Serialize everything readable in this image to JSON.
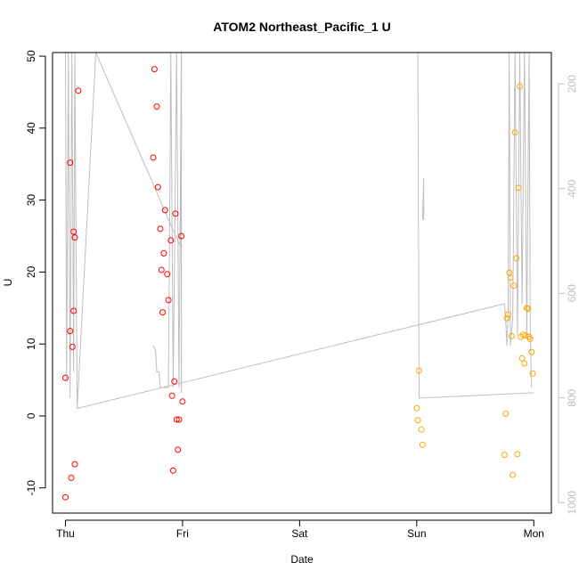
{
  "chart_data": {
    "type": "scatter",
    "title": "ATOM2 Northeast_Pacific_1 U",
    "xlabel": "Date",
    "ylabel": "U",
    "x_unit": "days",
    "x_range": [
      -0.11,
      4.15
    ],
    "ylim": [
      -13.5,
      50.5
    ],
    "y2lim": [
      1020,
      140
    ],
    "y2_reversed": true,
    "x_ticks": [
      {
        "value": 0,
        "label": "Thu"
      },
      {
        "value": 1,
        "label": "Fri"
      },
      {
        "value": 2,
        "label": "Sat"
      },
      {
        "value": 3,
        "label": "Sun"
      },
      {
        "value": 4,
        "label": "Mon"
      }
    ],
    "y_ticks": [
      -10,
      0,
      10,
      20,
      30,
      40,
      50
    ],
    "y2_ticks": [
      200,
      400,
      600,
      800,
      1000
    ],
    "series": [
      {
        "color": "#ff0000",
        "marker": "open-circle",
        "points": [
          [
            0.0,
            5.3
          ],
          [
            0.0,
            -11.3
          ],
          [
            0.04,
            35.2
          ],
          [
            0.04,
            11.8
          ],
          [
            0.05,
            -8.6
          ],
          [
            0.06,
            9.6
          ],
          [
            0.07,
            25.6
          ],
          [
            0.07,
            14.6
          ],
          [
            0.08,
            24.8
          ],
          [
            0.08,
            -6.7
          ],
          [
            0.11,
            45.2
          ],
          [
            0.75,
            35.9
          ],
          [
            0.76,
            48.2
          ],
          [
            0.78,
            43.0
          ],
          [
            0.79,
            31.8
          ],
          [
            0.81,
            26.0
          ],
          [
            0.82,
            20.3
          ],
          [
            0.83,
            14.4
          ],
          [
            0.84,
            22.6
          ],
          [
            0.85,
            28.6
          ],
          [
            0.87,
            19.7
          ],
          [
            0.88,
            16.1
          ],
          [
            0.9,
            24.4
          ],
          [
            0.91,
            2.8
          ],
          [
            0.92,
            -7.6
          ],
          [
            0.93,
            4.8
          ],
          [
            0.94,
            28.1
          ],
          [
            0.95,
            -0.5
          ],
          [
            0.96,
            -4.7
          ],
          [
            0.97,
            -0.5
          ],
          [
            0.99,
            25.0
          ],
          [
            1.0,
            2.0
          ]
        ]
      },
      {
        "color": "#ffa500",
        "marker": "open-circle",
        "points": [
          [
            3.0,
            1.1
          ],
          [
            3.01,
            -0.6
          ],
          [
            3.02,
            6.3
          ],
          [
            3.04,
            -1.9
          ],
          [
            3.05,
            -4.0
          ],
          [
            3.75,
            -5.4
          ],
          [
            3.76,
            0.3
          ],
          [
            3.77,
            13.6
          ],
          [
            3.78,
            14.1
          ],
          [
            3.79,
            19.9
          ],
          [
            3.8,
            19.2
          ],
          [
            3.81,
            11.1
          ],
          [
            3.82,
            -8.2
          ],
          [
            3.83,
            18.1
          ],
          [
            3.84,
            39.4
          ],
          [
            3.85,
            21.9
          ],
          [
            3.86,
            -5.3
          ],
          [
            3.87,
            31.7
          ],
          [
            3.88,
            45.8
          ],
          [
            3.89,
            11.0
          ],
          [
            3.9,
            8.0
          ],
          [
            3.91,
            11.3
          ],
          [
            3.92,
            7.3
          ],
          [
            3.93,
            11.2
          ],
          [
            3.94,
            15.0
          ],
          [
            3.95,
            14.9
          ],
          [
            3.96,
            11.0
          ],
          [
            3.97,
            10.7
          ],
          [
            3.98,
            8.9
          ],
          [
            3.99,
            5.9
          ]
        ]
      }
    ],
    "depth_line": {
      "color": "#bebebe",
      "axis": "right",
      "points": [
        [
          0.0,
          140
        ],
        [
          0.01,
          770
        ],
        [
          0.025,
          140
        ],
        [
          0.04,
          800
        ],
        [
          0.055,
          140
        ],
        [
          0.07,
          750
        ],
        [
          0.08,
          140
        ],
        [
          0.1,
          820
        ],
        [
          0.26,
          140
        ],
        [
          0.98,
          510
        ],
        [
          0.99,
          140
        ],
        [
          0.99,
          790
        ]
      ],
      "segments": [
        [
          [
            0.75,
            700
          ],
          [
            0.77,
            710
          ],
          [
            0.78,
            750
          ],
          [
            0.8,
            750
          ],
          [
            0.81,
            780
          ],
          [
            0.88,
            780
          ],
          [
            0.9,
            140
          ],
          [
            0.92,
            780
          ],
          [
            0.95,
            140
          ],
          [
            0.97,
            780
          ],
          [
            0.99,
            140
          ],
          [
            0.99,
            780
          ]
        ],
        [
          [
            0.1,
            820
          ],
          [
            3.75,
            620
          ],
          [
            3.76,
            650
          ],
          [
            3.77,
            700
          ],
          [
            3.78,
            640
          ],
          [
            3.79,
            140
          ],
          [
            3.8,
            700
          ],
          [
            3.82,
            650
          ],
          [
            3.84,
            140
          ],
          [
            3.86,
            680
          ],
          [
            3.88,
            140
          ],
          [
            3.9,
            620
          ],
          [
            3.92,
            140
          ],
          [
            3.94,
            680
          ],
          [
            3.96,
            140
          ],
          [
            3.97,
            670
          ],
          [
            3.98,
            780
          ]
        ],
        [
          [
            3.01,
            140
          ],
          [
            3.02,
            800
          ],
          [
            3.05,
            800
          ],
          [
            4.0,
            790
          ]
        ],
        [
          [
            3.05,
            460
          ],
          [
            3.06,
            380
          ],
          [
            3.06,
            460
          ]
        ]
      ]
    }
  }
}
